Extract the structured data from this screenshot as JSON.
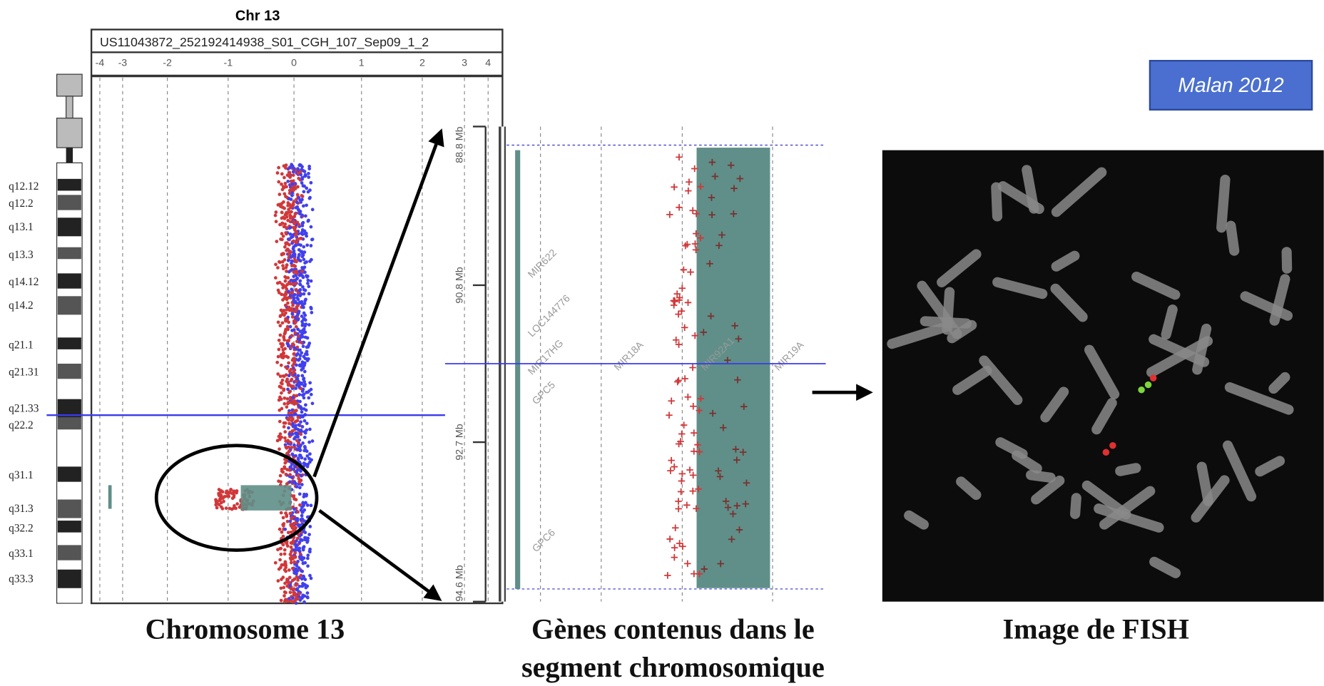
{
  "left_panel": {
    "title": "Chr 13",
    "sample": "US11043872_252192414938_S01_CGH_107_Sep09_1_2",
    "axis_ticks": [
      "-4",
      "-3",
      "-2",
      "-1",
      "0",
      "1",
      "2",
      "3",
      "4"
    ],
    "bands": [
      "q12.12",
      "q12.2",
      "q13.1",
      "q13.3",
      "q14.12",
      "q14.2",
      "q21.1",
      "q21.31",
      "q21.33",
      "q22.2",
      "q31.1",
      "q31.3",
      "q32.2",
      "q33.1",
      "q33.3"
    ]
  },
  "middle_panel": {
    "positions": [
      "88.8 Mb",
      "90.8 Mb",
      "92.7 Mb",
      "94.6 Mb"
    ],
    "genes": [
      "MIR622",
      "LOC144776",
      "MIR17HG",
      "GPC5",
      "MIR18A",
      "MIR92A1",
      "MIR19A",
      "GPC6"
    ]
  },
  "badge": "Malan 2012",
  "captions": {
    "chromosome": "Chromosome 13",
    "genes_line1": "Gènes contenus dans le",
    "genes_line2": "segment chromosomique",
    "fish": "Image de FISH"
  }
}
